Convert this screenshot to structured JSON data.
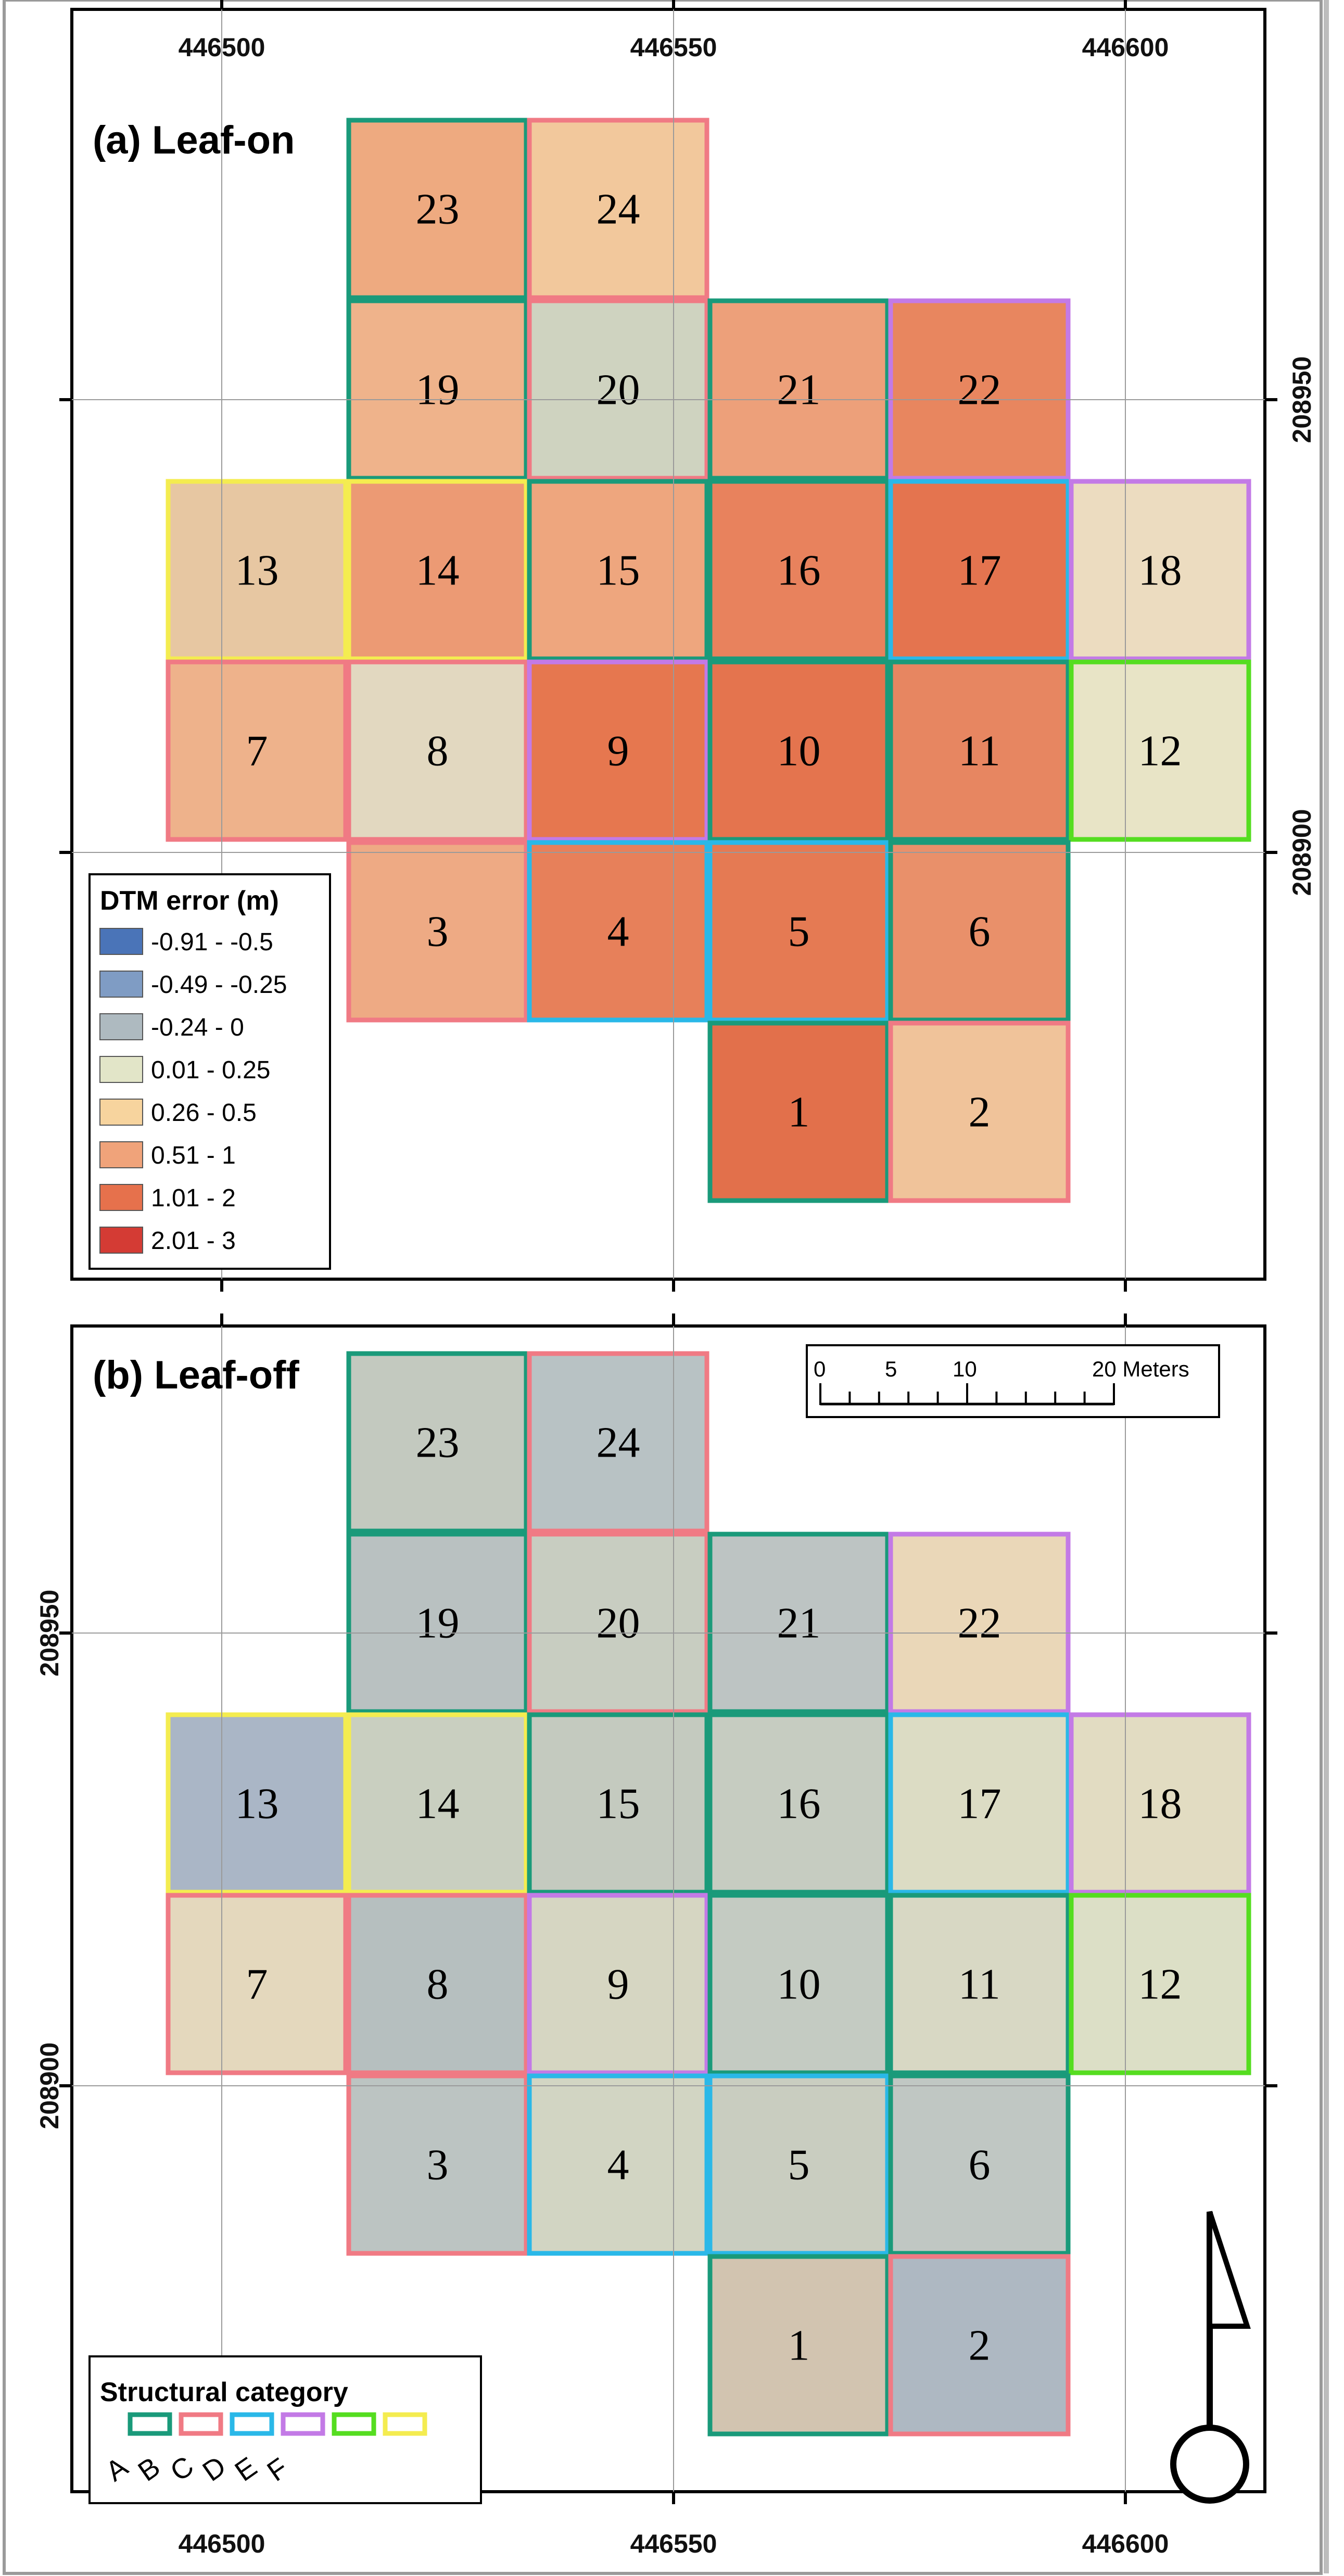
{
  "panels": [
    {
      "id": "leaf-on",
      "label": "(a) Leaf-on",
      "x_ticks": [
        "446500",
        "446550",
        "446600"
      ],
      "y_ticks": [
        "208950",
        "208900"
      ],
      "plots": [
        {
          "n": "23",
          "category": "A",
          "color": "#eeaa80"
        },
        {
          "n": "24",
          "category": "B",
          "color": "#f2c89c"
        },
        {
          "n": "19",
          "category": "A",
          "color": "#efb38b"
        },
        {
          "n": "20",
          "category": "B",
          "color": "#cfd3c0"
        },
        {
          "n": "21",
          "category": "A",
          "color": "#eda07a"
        },
        {
          "n": "22",
          "category": "D",
          "color": "#e8865f"
        },
        {
          "n": "13",
          "category": "F",
          "color": "#e7c7a2"
        },
        {
          "n": "14",
          "category": "F",
          "color": "#ec9a74"
        },
        {
          "n": "15",
          "category": "A",
          "color": "#eea67e"
        },
        {
          "n": "16",
          "category": "A",
          "color": "#e8825d"
        },
        {
          "n": "17",
          "category": "C",
          "color": "#e4744f"
        },
        {
          "n": "18",
          "category": "D",
          "color": "#ecdcc0"
        },
        {
          "n": "7",
          "category": "B",
          "color": "#eeb28b"
        },
        {
          "n": "8",
          "category": "B",
          "color": "#e2d8c0"
        },
        {
          "n": "9",
          "category": "D",
          "color": "#e6774f"
        },
        {
          "n": "10",
          "category": "A",
          "color": "#e4744e"
        },
        {
          "n": "11",
          "category": "A",
          "color": "#e78661"
        },
        {
          "n": "12",
          "category": "E",
          "color": "#e8e4c6"
        },
        {
          "n": "3",
          "category": "B",
          "color": "#eeaa84"
        },
        {
          "n": "4",
          "category": "C",
          "color": "#e7805a"
        },
        {
          "n": "5",
          "category": "C",
          "color": "#e57a53"
        },
        {
          "n": "6",
          "category": "A",
          "color": "#e9906a"
        },
        {
          "n": "1",
          "category": "A",
          "color": "#e2704b"
        },
        {
          "n": "2",
          "category": "B",
          "color": "#f0c39a"
        }
      ]
    },
    {
      "id": "leaf-off",
      "label": "(b) Leaf-off",
      "x_ticks": [
        "446500",
        "446550",
        "446600"
      ],
      "y_ticks": [
        "208950",
        "208900"
      ],
      "plots": [
        {
          "n": "23",
          "category": "A",
          "color": "#c3c9bf"
        },
        {
          "n": "24",
          "category": "B",
          "color": "#b8c2c4"
        },
        {
          "n": "19",
          "category": "A",
          "color": "#b9c1c1"
        },
        {
          "n": "20",
          "category": "B",
          "color": "#c8cdc1"
        },
        {
          "n": "21",
          "category": "A",
          "color": "#bdc4c3"
        },
        {
          "n": "22",
          "category": "D",
          "color": "#ead7b8"
        },
        {
          "n": "13",
          "category": "F",
          "color": "#aab6c6"
        },
        {
          "n": "14",
          "category": "F",
          "color": "#c9cfc0"
        },
        {
          "n": "15",
          "category": "A",
          "color": "#c4cabf"
        },
        {
          "n": "16",
          "category": "A",
          "color": "#c6ccc1"
        },
        {
          "n": "17",
          "category": "C",
          "color": "#dcdcc4"
        },
        {
          "n": "18",
          "category": "D",
          "color": "#e2dcc2"
        },
        {
          "n": "7",
          "category": "B",
          "color": "#e4d8bd"
        },
        {
          "n": "8",
          "category": "B",
          "color": "#b6bfbf"
        },
        {
          "n": "9",
          "category": "D",
          "color": "#d6d6c2"
        },
        {
          "n": "10",
          "category": "A",
          "color": "#c4cbc2"
        },
        {
          "n": "11",
          "category": "A",
          "color": "#d8d8c4"
        },
        {
          "n": "12",
          "category": "E",
          "color": "#dcdfc6"
        },
        {
          "n": "3",
          "category": "B",
          "color": "#bcc4c2"
        },
        {
          "n": "4",
          "category": "C",
          "color": "#d2d5c3"
        },
        {
          "n": "5",
          "category": "C",
          "color": "#c9cdc0"
        },
        {
          "n": "6",
          "category": "A",
          "color": "#c0c7c3"
        },
        {
          "n": "1",
          "category": "A",
          "color": "#d2c4b0"
        },
        {
          "n": "2",
          "category": "B",
          "color": "#aeb8c2"
        }
      ]
    }
  ],
  "legend": {
    "title": "DTM error (m)",
    "items": [
      {
        "label": "-0.91 - -0.5",
        "color": "#4a74b8"
      },
      {
        "label": "-0.49 - -0.25",
        "color": "#7f9cc4"
      },
      {
        "label": "-0.24 - 0",
        "color": "#aebac0"
      },
      {
        "label": "0.01 - 0.25",
        "color": "#e2e5c8"
      },
      {
        "label": "0.26 - 0.5",
        "color": "#f7d49e"
      },
      {
        "label": "0.51 - 1",
        "color": "#f0a37a"
      },
      {
        "label": "1.01 - 2",
        "color": "#e6714c"
      },
      {
        "label": "2.01 - 3",
        "color": "#d43b34"
      }
    ]
  },
  "structural_category": {
    "title": "Structural category",
    "items": [
      {
        "letter": "A",
        "color": "#1a9a7a"
      },
      {
        "letter": "B",
        "color": "#f07a84"
      },
      {
        "letter": "C",
        "color": "#2ab8e8"
      },
      {
        "letter": "D",
        "color": "#c37ae6"
      },
      {
        "letter": "E",
        "color": "#55dd20"
      },
      {
        "letter": "F",
        "color": "#f4ec50"
      }
    ]
  },
  "scale_bar": {
    "labels": [
      "0",
      "5",
      "10",
      "20 Meters"
    ]
  },
  "north_arrow": {
    "symbol": "north-arrow"
  }
}
